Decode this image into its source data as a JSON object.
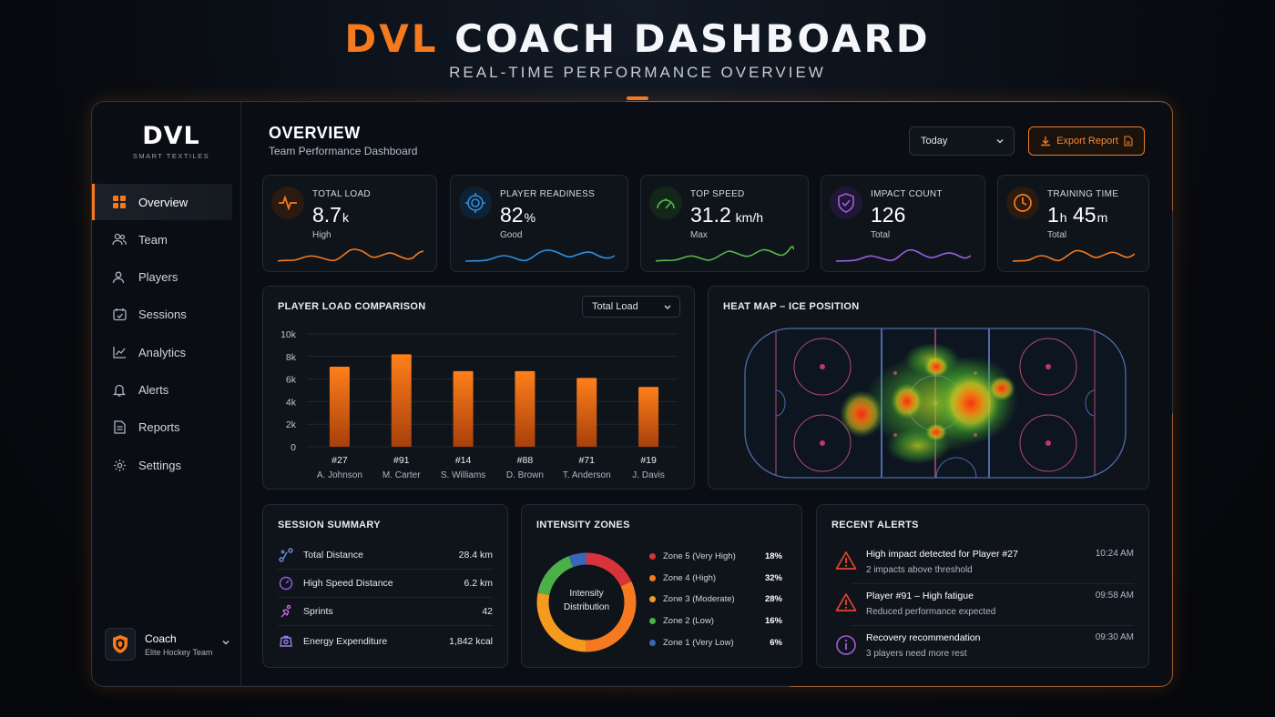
{
  "hero": {
    "brand": "DVL",
    "title_rest": "COACH DASHBOARD",
    "subtitle": "REAL-TIME PERFORMANCE OVERVIEW"
  },
  "logo": {
    "main": "DVL",
    "sub": "SMART TEXTILES"
  },
  "sidebar": {
    "items": [
      {
        "label": "Overview",
        "icon": "grid-icon",
        "active": true
      },
      {
        "label": "Team",
        "icon": "team-icon"
      },
      {
        "label": "Players",
        "icon": "players-icon"
      },
      {
        "label": "Sessions",
        "icon": "sessions-icon"
      },
      {
        "label": "Analytics",
        "icon": "analytics-icon"
      },
      {
        "label": "Alerts",
        "icon": "bell-icon"
      },
      {
        "label": "Reports",
        "icon": "report-icon"
      },
      {
        "label": "Settings",
        "icon": "gear-icon"
      }
    ],
    "user": {
      "name": "Coach",
      "team": "Elite Hockey Team"
    }
  },
  "header": {
    "title": "OVERVIEW",
    "subtitle": "Team Performance Dashboard",
    "date_select": "Today",
    "export_label": "Export Report"
  },
  "kpis": [
    {
      "label": "TOTAL LOAD",
      "value": "8.7",
      "unit": "k",
      "sub": "High",
      "color": "#f57a1f",
      "icon": "heartbeat-icon"
    },
    {
      "label": "PLAYER READINESS",
      "value": "82",
      "unit": "%",
      "sub": "Good",
      "color": "#2f8fe0",
      "icon": "target-icon"
    },
    {
      "label": "TOP SPEED",
      "value": "31.2",
      "unit": " km/h",
      "sub": "Max",
      "color": "#58b848",
      "icon": "speedometer-icon"
    },
    {
      "label": "IMPACT COUNT",
      "value": "126",
      "unit": "",
      "sub": "Total",
      "color": "#9b5ee0",
      "icon": "shield-icon"
    },
    {
      "label": "TRAINING TIME",
      "value": "1",
      "unit": "h",
      "value2": " 45",
      "unit2": "m",
      "sub": "Total",
      "color": "#f57a1f",
      "icon": "clock-icon"
    }
  ],
  "load_chart": {
    "title": "PLAYER LOAD COMPARISON",
    "select": "Total Load"
  },
  "chart_data": {
    "type": "bar",
    "categories": [
      "#27",
      "#91",
      "#14",
      "#88",
      "#71",
      "#19"
    ],
    "names": [
      "A. Johnson",
      "M. Carter",
      "S. Williams",
      "D. Brown",
      "T. Anderson",
      "J. Davis"
    ],
    "values": [
      7100,
      8200,
      6700,
      6700,
      6100,
      5300
    ],
    "yticks": [
      "10k",
      "8k",
      "6k",
      "4k",
      "2k",
      "0"
    ],
    "ylim": [
      0,
      10000
    ],
    "color": "#f57a1f"
  },
  "heatmap": {
    "title": "HEAT MAP – ICE POSITION"
  },
  "session_summary": {
    "title": "SESSION SUMMARY",
    "rows": [
      {
        "label": "Total Distance",
        "value": "28.4 km",
        "icon": "distance-icon"
      },
      {
        "label": "High Speed Distance",
        "value": "6.2 km",
        "icon": "speed-icon"
      },
      {
        "label": "Sprints",
        "value": "42",
        "icon": "sprint-icon"
      },
      {
        "label": "Energy Expenditure",
        "value": "1,842 kcal",
        "icon": "energy-icon"
      }
    ]
  },
  "intensity": {
    "title": "INTENSITY ZONES",
    "center_label": "Intensity Distribution",
    "zones": [
      {
        "label": "Zone 5 (Very High)",
        "pct": "18%",
        "value": 18,
        "color": "#d8323a"
      },
      {
        "label": "Zone 4 (High)",
        "pct": "32%",
        "value": 32,
        "color": "#f57a1f"
      },
      {
        "label": "Zone 3 (Moderate)",
        "pct": "28%",
        "value": 28,
        "color": "#f59a1f"
      },
      {
        "label": "Zone 2 (Low)",
        "pct": "16%",
        "value": 16,
        "color": "#4cb048"
      },
      {
        "label": "Zone 1 (Very Low)",
        "pct": "6%",
        "value": 6,
        "color": "#3a66b8"
      }
    ]
  },
  "alerts": {
    "title": "RECENT ALERTS",
    "items": [
      {
        "title": "High impact detected for Player #27",
        "desc": "2 impacts above threshold",
        "time": "10:24 AM",
        "icon": "warning-icon"
      },
      {
        "title": "Player #91 – High fatigue",
        "desc": "Reduced performance expected",
        "time": "09:58 AM",
        "icon": "warning-icon"
      },
      {
        "title": "Recovery recommendation",
        "desc": "3 players need more rest",
        "time": "09:30 AM",
        "icon": "info-icon"
      }
    ]
  }
}
